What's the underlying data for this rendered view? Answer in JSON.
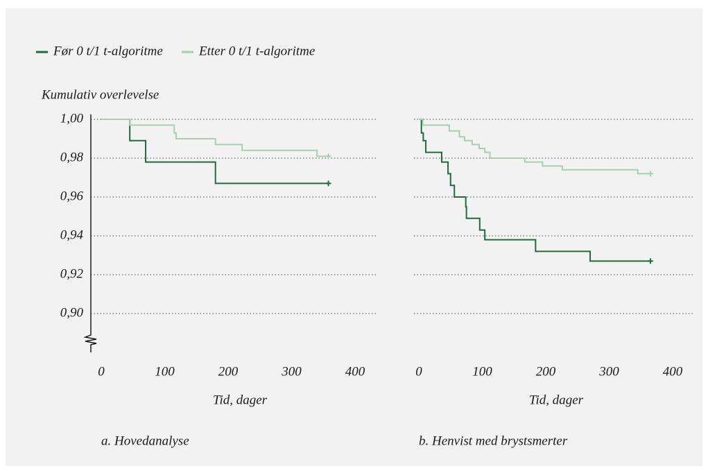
{
  "chart_data": [
    {
      "type": "step",
      "title": "a. Hovedanalyse",
      "ylabel": "Kumulativ overlevelse",
      "xlabel": "Tid, dager",
      "xlim": [
        0,
        400
      ],
      "xticks": [
        0,
        100,
        200,
        300,
        400
      ],
      "ylim": [
        0.88,
        1.0
      ],
      "yticks": [
        {
          "value": 1.0,
          "label": "1,00"
        },
        {
          "value": 0.98,
          "label": "0,98"
        },
        {
          "value": 0.96,
          "label": "0,96"
        },
        {
          "value": 0.94,
          "label": "0,94"
        },
        {
          "value": 0.92,
          "label": "0,92"
        },
        {
          "value": 0.9,
          "label": "0,90"
        }
      ],
      "grid": true,
      "series": [
        {
          "name": "Før 0 t/1 t-algoritme",
          "color": "#1d6b3f",
          "x": [
            0,
            45,
            70,
            180,
            358
          ],
          "values": [
            1.0,
            0.989,
            0.978,
            0.967,
            0.967
          ]
        },
        {
          "name": "Etter 0 t/1 t-algoritme",
          "color": "#a9ceb2",
          "x": [
            0,
            45,
            115,
            118,
            180,
            222,
            340,
            358
          ],
          "values": [
            1.0,
            0.997,
            0.993,
            0.99,
            0.987,
            0.984,
            0.981,
            0.981
          ]
        }
      ]
    },
    {
      "type": "step",
      "title": "b. Henvist med brystsmerter",
      "xlabel": "Tid, dager",
      "xlim": [
        0,
        400
      ],
      "xticks": [
        0,
        100,
        200,
        300,
        400
      ],
      "ylim": [
        0.88,
        1.0
      ],
      "grid": true,
      "series": [
        {
          "name": "Før 0 t/1 t-algoritme",
          "color": "#1d6b3f",
          "x": [
            0,
            4,
            7,
            11,
            36,
            46,
            50,
            56,
            74,
            75,
            96,
            104,
            184,
            270,
            365
          ],
          "values": [
            1.0,
            0.993,
            0.989,
            0.983,
            0.978,
            0.972,
            0.966,
            0.96,
            0.955,
            0.949,
            0.943,
            0.938,
            0.932,
            0.927,
            0.927
          ]
        },
        {
          "name": "Etter 0 t/1 t-algoritme",
          "color": "#a9ceb2",
          "x": [
            0,
            6,
            48,
            64,
            72,
            84,
            95,
            104,
            112,
            167,
            195,
            226,
            345,
            365
          ],
          "values": [
            1.0,
            0.997,
            0.994,
            0.991,
            0.989,
            0.987,
            0.985,
            0.983,
            0.98,
            0.978,
            0.976,
            0.974,
            0.972,
            0.972
          ]
        }
      ]
    }
  ]
}
